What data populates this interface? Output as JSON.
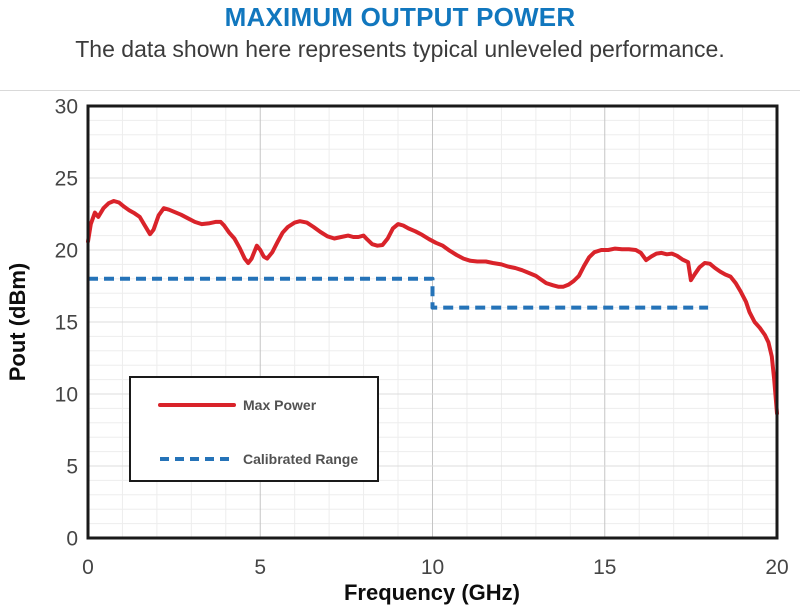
{
  "page": {
    "title": "MAXIMUM OUTPUT POWER",
    "title_color": "#1177be",
    "subtitle": "The data shown here represents typical unleveled performance."
  },
  "chart_data": {
    "type": "line",
    "title": "MAXIMUM OUTPUT POWER",
    "xlabel": "Frequency (GHz)",
    "ylabel": "Pout (dBm)",
    "xlim": [
      0,
      20
    ],
    "ylim": [
      0,
      30
    ],
    "x_ticks": [
      0,
      5,
      10,
      15,
      20
    ],
    "y_ticks": [
      0,
      5,
      10,
      15,
      20,
      25,
      30
    ],
    "minor_grid_step_x": 1,
    "minor_grid_step_y": 1,
    "grid": true,
    "legend_position": "inside-lower-left",
    "series": [
      {
        "name": "Max Power",
        "color": "#d9232a",
        "style": "solid",
        "points": [
          [
            0,
            20.6
          ],
          [
            0.08,
            21.8
          ],
          [
            0.2,
            22.6
          ],
          [
            0.3,
            22.3
          ],
          [
            0.45,
            22.9
          ],
          [
            0.6,
            23.25
          ],
          [
            0.75,
            23.4
          ],
          [
            0.9,
            23.3
          ],
          [
            1.05,
            23.0
          ],
          [
            1.2,
            22.75
          ],
          [
            1.35,
            22.55
          ],
          [
            1.5,
            22.3
          ],
          [
            1.65,
            21.7
          ],
          [
            1.8,
            21.1
          ],
          [
            1.9,
            21.4
          ],
          [
            2.05,
            22.4
          ],
          [
            2.2,
            22.9
          ],
          [
            2.35,
            22.8
          ],
          [
            2.5,
            22.65
          ],
          [
            2.7,
            22.45
          ],
          [
            2.9,
            22.2
          ],
          [
            3.1,
            21.95
          ],
          [
            3.3,
            21.8
          ],
          [
            3.5,
            21.85
          ],
          [
            3.7,
            21.95
          ],
          [
            3.85,
            21.95
          ],
          [
            3.95,
            21.7
          ],
          [
            4.1,
            21.2
          ],
          [
            4.25,
            20.8
          ],
          [
            4.4,
            20.15
          ],
          [
            4.55,
            19.4
          ],
          [
            4.65,
            19.1
          ],
          [
            4.75,
            19.4
          ],
          [
            4.9,
            20.3
          ],
          [
            5.0,
            20.0
          ],
          [
            5.1,
            19.55
          ],
          [
            5.2,
            19.4
          ],
          [
            5.35,
            19.85
          ],
          [
            5.5,
            20.55
          ],
          [
            5.65,
            21.2
          ],
          [
            5.8,
            21.6
          ],
          [
            6.0,
            21.9
          ],
          [
            6.15,
            22.0
          ],
          [
            6.35,
            21.9
          ],
          [
            6.55,
            21.6
          ],
          [
            6.75,
            21.25
          ],
          [
            6.95,
            20.95
          ],
          [
            7.15,
            20.8
          ],
          [
            7.35,
            20.9
          ],
          [
            7.55,
            21.0
          ],
          [
            7.7,
            20.9
          ],
          [
            7.85,
            20.9
          ],
          [
            8.0,
            21.0
          ],
          [
            8.1,
            20.75
          ],
          [
            8.25,
            20.4
          ],
          [
            8.4,
            20.3
          ],
          [
            8.55,
            20.35
          ],
          [
            8.7,
            20.8
          ],
          [
            8.85,
            21.5
          ],
          [
            9.0,
            21.8
          ],
          [
            9.15,
            21.7
          ],
          [
            9.3,
            21.5
          ],
          [
            9.5,
            21.3
          ],
          [
            9.7,
            21.05
          ],
          [
            9.9,
            20.75
          ],
          [
            10.1,
            20.5
          ],
          [
            10.3,
            20.3
          ],
          [
            10.5,
            19.95
          ],
          [
            10.7,
            19.65
          ],
          [
            10.9,
            19.4
          ],
          [
            11.1,
            19.25
          ],
          [
            11.3,
            19.2
          ],
          [
            11.55,
            19.2
          ],
          [
            11.75,
            19.1
          ],
          [
            12.0,
            19.0
          ],
          [
            12.2,
            18.85
          ],
          [
            12.4,
            18.75
          ],
          [
            12.6,
            18.6
          ],
          [
            12.8,
            18.4
          ],
          [
            13.0,
            18.2
          ],
          [
            13.15,
            17.95
          ],
          [
            13.3,
            17.7
          ],
          [
            13.5,
            17.55
          ],
          [
            13.65,
            17.45
          ],
          [
            13.8,
            17.45
          ],
          [
            13.95,
            17.6
          ],
          [
            14.1,
            17.85
          ],
          [
            14.25,
            18.2
          ],
          [
            14.4,
            18.9
          ],
          [
            14.55,
            19.5
          ],
          [
            14.7,
            19.85
          ],
          [
            14.9,
            20.0
          ],
          [
            15.1,
            20.0
          ],
          [
            15.3,
            20.1
          ],
          [
            15.5,
            20.05
          ],
          [
            15.7,
            20.05
          ],
          [
            15.9,
            20.0
          ],
          [
            16.05,
            19.8
          ],
          [
            16.2,
            19.3
          ],
          [
            16.35,
            19.55
          ],
          [
            16.5,
            19.75
          ],
          [
            16.65,
            19.8
          ],
          [
            16.8,
            19.7
          ],
          [
            16.95,
            19.75
          ],
          [
            17.1,
            19.6
          ],
          [
            17.25,
            19.35
          ],
          [
            17.42,
            19.15
          ],
          [
            17.5,
            17.9
          ],
          [
            17.62,
            18.35
          ],
          [
            17.75,
            18.8
          ],
          [
            17.9,
            19.1
          ],
          [
            18.05,
            19.05
          ],
          [
            18.2,
            18.75
          ],
          [
            18.35,
            18.5
          ],
          [
            18.5,
            18.3
          ],
          [
            18.65,
            18.15
          ],
          [
            18.8,
            17.7
          ],
          [
            18.95,
            17.1
          ],
          [
            19.1,
            16.4
          ],
          [
            19.2,
            15.7
          ],
          [
            19.35,
            15.0
          ],
          [
            19.5,
            14.6
          ],
          [
            19.65,
            14.1
          ],
          [
            19.75,
            13.6
          ],
          [
            19.85,
            12.6
          ],
          [
            19.92,
            11.0
          ],
          [
            19.97,
            9.5
          ],
          [
            20,
            8.65
          ]
        ]
      },
      {
        "name": "Calibrated Range",
        "color": "#2573b8",
        "style": "dashed",
        "points": [
          [
            0,
            18
          ],
          [
            10,
            18
          ],
          [
            10,
            16
          ],
          [
            18,
            16
          ]
        ]
      }
    ]
  }
}
